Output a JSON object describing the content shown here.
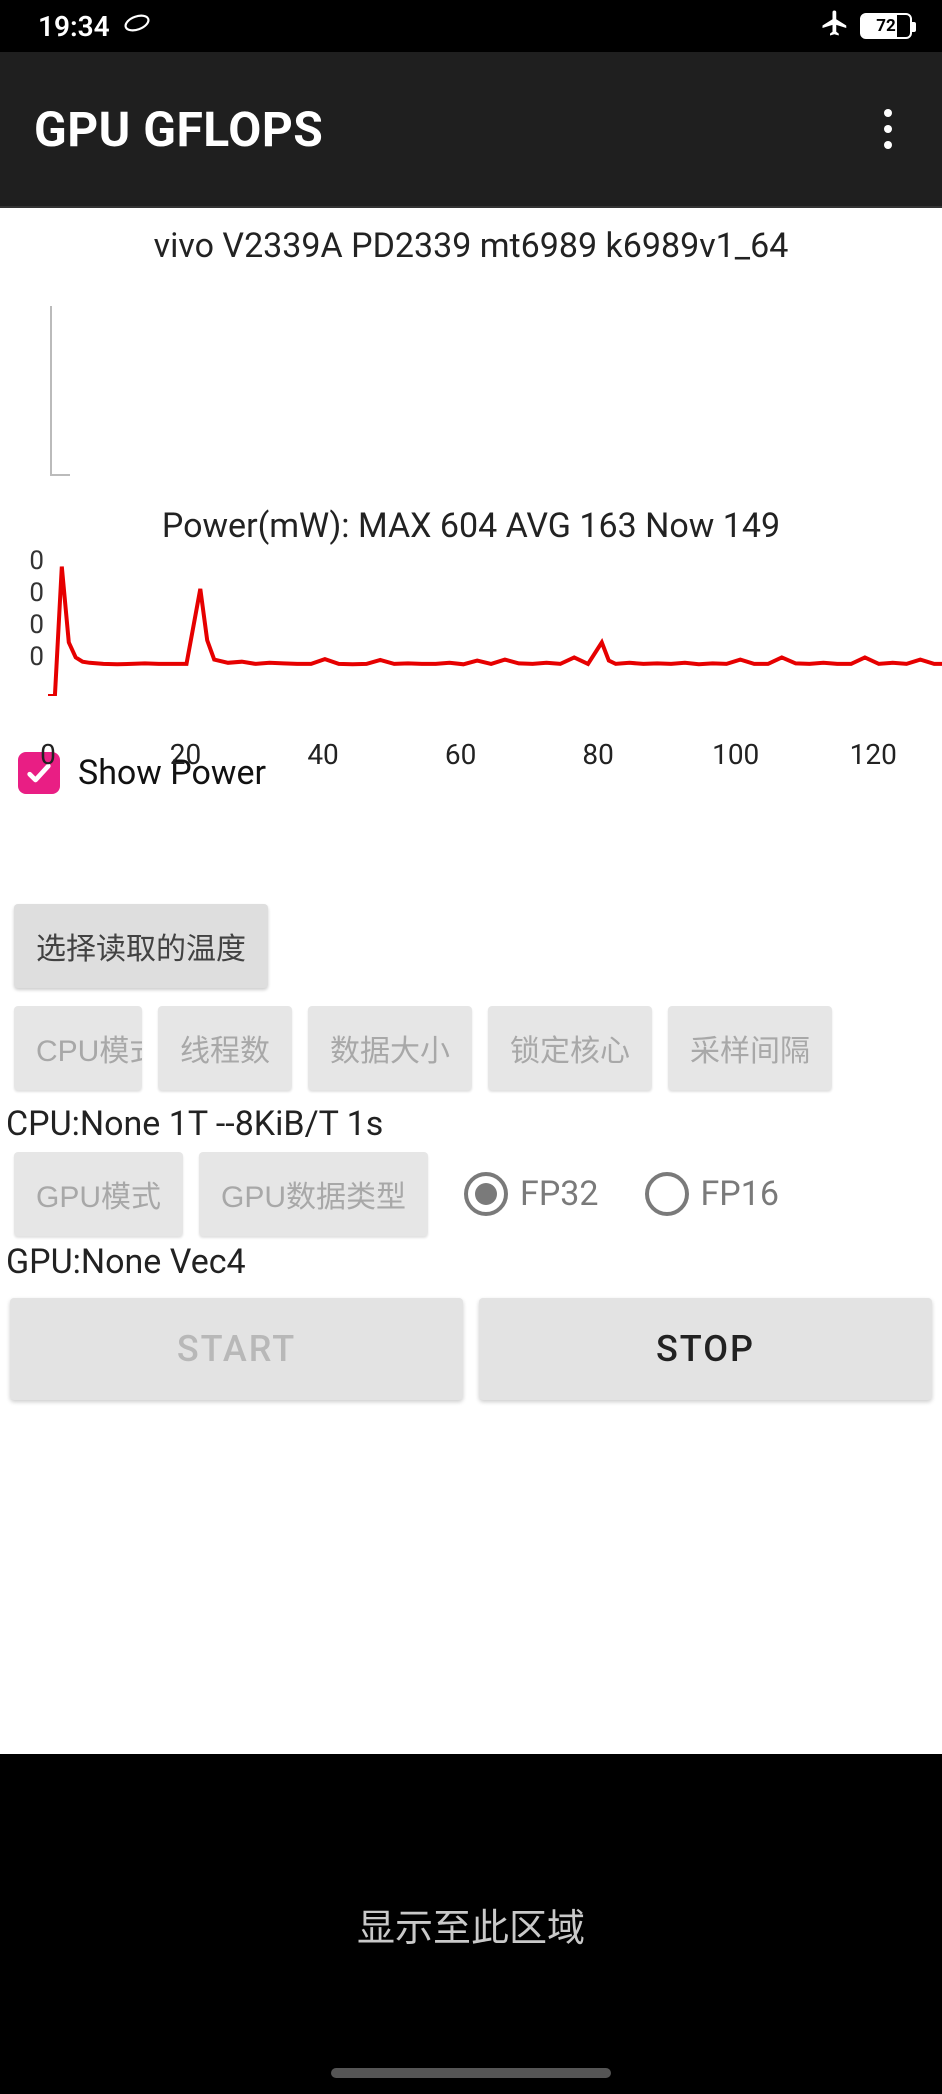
{
  "status": {
    "time": "19:34",
    "battery_pct": 72,
    "battery_text": "72"
  },
  "appbar": {
    "title": "GPU GFLOPS"
  },
  "device_line": "vivo V2339A PD2339 mt6989 k6989v1_64",
  "chart1": {
    "ylim": [
      0,
      100
    ],
    "background_color": "#ffffff",
    "axis_color": "#bbbbbb"
  },
  "power_chart": {
    "title": "Power(mW): MAX 604 AVG 163 Now 149",
    "type": "line",
    "line_color": "#e60000",
    "line_width": 4,
    "background_color": "#ffffff",
    "xlim": [
      0,
      130
    ],
    "ylim": [
      0,
      700
    ],
    "x_ticks": [
      0,
      20,
      40,
      60,
      80,
      100,
      120
    ],
    "y_ticks_label": "0",
    "points": [
      [
        0,
        0
      ],
      [
        1,
        0
      ],
      [
        2,
        604
      ],
      [
        3,
        250
      ],
      [
        4,
        180
      ],
      [
        5,
        160
      ],
      [
        6,
        155
      ],
      [
        8,
        150
      ],
      [
        10,
        148
      ],
      [
        12,
        150
      ],
      [
        14,
        152
      ],
      [
        16,
        150
      ],
      [
        18,
        150
      ],
      [
        20,
        150
      ],
      [
        22,
        500
      ],
      [
        23,
        260
      ],
      [
        24,
        170
      ],
      [
        26,
        155
      ],
      [
        28,
        160
      ],
      [
        30,
        150
      ],
      [
        32,
        155
      ],
      [
        34,
        152
      ],
      [
        36,
        150
      ],
      [
        38,
        150
      ],
      [
        40,
        172
      ],
      [
        42,
        150
      ],
      [
        44,
        148
      ],
      [
        46,
        150
      ],
      [
        48,
        168
      ],
      [
        50,
        150
      ],
      [
        52,
        152
      ],
      [
        54,
        150
      ],
      [
        56,
        150
      ],
      [
        58,
        155
      ],
      [
        60,
        148
      ],
      [
        62,
        165
      ],
      [
        64,
        150
      ],
      [
        66,
        170
      ],
      [
        68,
        152
      ],
      [
        70,
        150
      ],
      [
        72,
        155
      ],
      [
        74,
        150
      ],
      [
        76,
        180
      ],
      [
        78,
        150
      ],
      [
        80,
        250
      ],
      [
        81,
        165
      ],
      [
        82,
        150
      ],
      [
        84,
        155
      ],
      [
        86,
        150
      ],
      [
        88,
        152
      ],
      [
        90,
        150
      ],
      [
        92,
        155
      ],
      [
        94,
        148
      ],
      [
        96,
        152
      ],
      [
        98,
        150
      ],
      [
        100,
        170
      ],
      [
        102,
        150
      ],
      [
        104,
        150
      ],
      [
        106,
        180
      ],
      [
        108,
        152
      ],
      [
        110,
        150
      ],
      [
        112,
        155
      ],
      [
        114,
        150
      ],
      [
        116,
        150
      ],
      [
        118,
        180
      ],
      [
        120,
        150
      ],
      [
        122,
        155
      ],
      [
        124,
        150
      ],
      [
        126,
        170
      ],
      [
        128,
        150
      ],
      [
        130,
        150
      ]
    ]
  },
  "show_power": {
    "checked": true,
    "label": "Show Power"
  },
  "buttons": {
    "select_temp": "选择读取的温度",
    "cpu_mode": "CPU模式",
    "threads": "线程数",
    "data_size": "数据大小",
    "lock_core": "锁定核心",
    "sample_interval": "采样间隔",
    "gpu_mode": "GPU模式",
    "gpu_dtype": "GPU数据类型"
  },
  "cpu_info": "CPU:None 1T --8KiB/T 1s",
  "gpu_info": "GPU:None Vec4",
  "radio": {
    "fp32": "FP32",
    "fp16": "FP16",
    "selected": "fp32"
  },
  "actions": {
    "start": "START",
    "stop": "STOP"
  },
  "bottom_text": "显示至此区域",
  "colors": {
    "accent": "#e91e84",
    "appbar_bg": "#1f1f1f",
    "status_bg": "#000000",
    "btn_bg": "#dedede",
    "btn_disabled_text": "#a8a8a8"
  }
}
